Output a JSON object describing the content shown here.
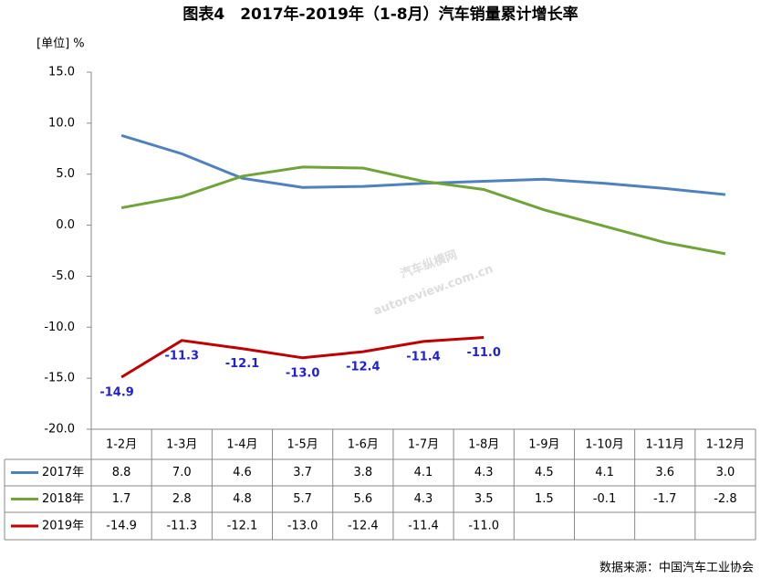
{
  "chart_data": {
    "type": "line",
    "title": "图表4　2017年-2019年（1-8月）汽车销量累计增长率",
    "y_label": "[单位] %",
    "source": "数据来源：中国汽车工业协会",
    "watermark": [
      "汽车纵横网",
      "autoreview.com.cn"
    ],
    "categories": [
      "1-2月",
      "1-3月",
      "1-4月",
      "1-5月",
      "1-6月",
      "1-7月",
      "1-8月",
      "1-9月",
      "1-10月",
      "1-11月",
      "1-12月"
    ],
    "series": [
      {
        "name": "2017年",
        "color": "#4f81bd",
        "values": [
          8.8,
          7.0,
          4.6,
          3.7,
          3.8,
          4.1,
          4.3,
          4.5,
          4.1,
          3.6,
          3.0
        ],
        "value_labels": [
          "8.8",
          "7.0",
          "4.6",
          "3.7",
          "3.8",
          "4.1",
          "4.3",
          "4.5",
          "4.1",
          "3.6",
          "3.0"
        ]
      },
      {
        "name": "2018年",
        "color": "#70a338",
        "values": [
          1.7,
          2.8,
          4.8,
          5.7,
          5.6,
          4.3,
          3.5,
          1.5,
          -0.1,
          -1.7,
          -2.8
        ],
        "value_labels": [
          "1.7",
          "2.8",
          "4.8",
          "5.7",
          "5.6",
          "4.3",
          "3.5",
          "1.5",
          "-0.1",
          "-1.7",
          "-2.8"
        ]
      },
      {
        "name": "2019年",
        "color": "#c00000",
        "data_labels": true,
        "values": [
          -14.9,
          -11.3,
          -12.1,
          -13.0,
          -12.4,
          -11.4,
          -11.0,
          null,
          null,
          null,
          null
        ],
        "value_labels": [
          "-14.9",
          "-11.3",
          "-12.1",
          "-13.0",
          "-12.4",
          "-11.4",
          "-11.0",
          null,
          null,
          null,
          null
        ]
      }
    ],
    "ylim": [
      -20,
      15
    ],
    "yticks": [
      {
        "value": -20,
        "label": "-20.0"
      },
      {
        "value": -15,
        "label": "-15.0"
      },
      {
        "value": -10,
        "label": "-10.0"
      },
      {
        "value": -5,
        "label": "-5.0"
      },
      {
        "value": 0,
        "label": "0.0"
      },
      {
        "value": 5,
        "label": "5.0"
      },
      {
        "value": 10,
        "label": "10.0"
      },
      {
        "value": 15,
        "label": "15.0"
      }
    ],
    "grid": false
  }
}
